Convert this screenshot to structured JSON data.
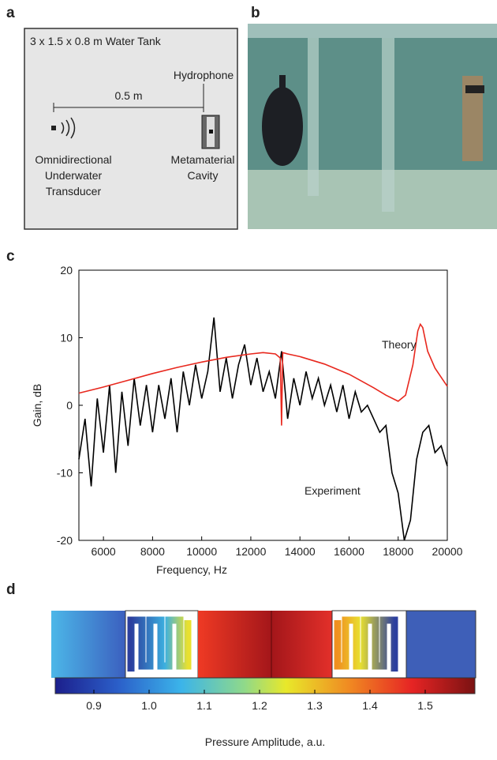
{
  "panel_labels": [
    "a",
    "b",
    "c",
    "d"
  ],
  "diagram": {
    "tank": "3 x 1.5 x 0.8 m Water Tank",
    "distance": "0.5 m",
    "hydrophone": "Hydrophone",
    "transducer": [
      "Omnidirectional",
      "Underwater",
      "Transducer"
    ],
    "cavity": [
      "Metamaterial",
      "Cavity"
    ]
  },
  "chart_data": {
    "type": "line",
    "xlabel": "Frequency, Hz",
    "ylabel": "Gain, dB",
    "xlim": [
      5000,
      20000
    ],
    "ylim": [
      -20,
      20
    ],
    "xticks": [
      6000,
      8000,
      10000,
      12000,
      14000,
      16000,
      18000,
      20000
    ],
    "yticks": [
      -20,
      -10,
      0,
      10,
      20
    ],
    "series": [
      {
        "name": "Theory",
        "color": "#e8281e",
        "x": [
          5000,
          6000,
          7000,
          8000,
          9000,
          10000,
          11000,
          12000,
          12500,
          13000,
          13200,
          13250,
          13300,
          13500,
          14000,
          15000,
          16000,
          17000,
          17500,
          18000,
          18300,
          18600,
          18800,
          18900,
          19000,
          19200,
          19500,
          20000
        ],
        "values": [
          1.8,
          2.7,
          3.7,
          4.7,
          5.6,
          6.4,
          7.1,
          7.6,
          7.8,
          7.6,
          7.0,
          -3,
          7.8,
          7.6,
          7.2,
          6.1,
          4.6,
          2.6,
          1.5,
          0.6,
          1.5,
          6,
          11,
          12,
          11.5,
          8,
          5.5,
          2.8
        ]
      },
      {
        "name": "Experiment",
        "color": "#000000",
        "x": [
          5000,
          5250,
          5500,
          5750,
          6000,
          6250,
          6500,
          6750,
          7000,
          7250,
          7500,
          7750,
          8000,
          8250,
          8500,
          8750,
          9000,
          9250,
          9500,
          9750,
          10000,
          10250,
          10500,
          10750,
          11000,
          11250,
          11500,
          11750,
          12000,
          12250,
          12500,
          12750,
          13000,
          13250,
          13500,
          13750,
          14000,
          14250,
          14500,
          14750,
          15000,
          15250,
          15500,
          15750,
          16000,
          16250,
          16500,
          16750,
          17000,
          17250,
          17500,
          17750,
          18000,
          18250,
          18500,
          18750,
          19000,
          19250,
          19500,
          19750,
          20000
        ],
        "values": [
          -8,
          -2,
          -12,
          1,
          -7,
          3,
          -10,
          2,
          -6,
          4,
          -3,
          3,
          -4,
          3,
          -2,
          4,
          -4,
          5,
          0,
          6,
          1,
          5,
          13,
          2,
          7,
          1,
          6,
          9,
          3,
          7,
          2,
          5,
          1,
          8,
          -2,
          4,
          0,
          5,
          1,
          4,
          0,
          3,
          -1,
          3,
          -2,
          2,
          -1,
          0,
          -2,
          -4,
          -3,
          -10,
          -13,
          -20,
          -17,
          -8,
          -4,
          -3,
          -7,
          -6,
          -9
        ]
      }
    ]
  },
  "colorbar": {
    "label": "Pressure Amplitude, a.u.",
    "lim": [
      0.83,
      1.59
    ],
    "ticks": [
      0.9,
      {
        "value": 1,
        "label": "1.0"
      },
      1.1,
      1.2,
      1.3,
      1.4,
      1.5
    ]
  }
}
